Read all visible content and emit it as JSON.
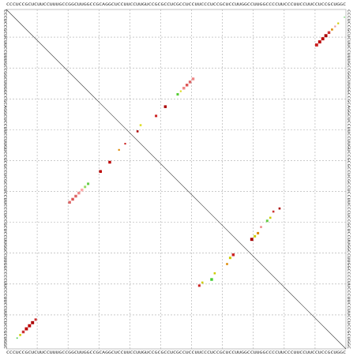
{
  "chart_data": {
    "type": "dotplot",
    "sequence": "CCCUCCGCUCUUCCUUUGCCGGCUUGGCCGCAGGCUCCUUCCUUGUCCGCGCCUCGCCUCCUUCCCUCCGCUCCUUGGCCUUGGCCCCUUCCCUUCCUUCCUCCGCUGGC",
    "gridlines": [
      10,
      20,
      30,
      40,
      50,
      60,
      70,
      80,
      90,
      100
    ],
    "grid": true,
    "dots": [
      {
        "row": 106,
        "col": 3,
        "size": 0.4,
        "color": "#44cc44"
      },
      {
        "row": 105,
        "col": 4,
        "size": 0.6,
        "color": "#cccc00"
      },
      {
        "row": 104,
        "col": 5,
        "size": 0.8,
        "color": "#cc3333"
      },
      {
        "row": 103,
        "col": 6,
        "size": 0.9,
        "color": "#bb0000"
      },
      {
        "row": 102,
        "col": 7,
        "size": 0.9,
        "color": "#bb0000"
      },
      {
        "row": 101,
        "col": 8,
        "size": 0.9,
        "color": "#aa0000"
      },
      {
        "row": 100,
        "col": 9,
        "size": 0.7,
        "color": "#cc3333"
      },
      {
        "row": 62,
        "col": 20,
        "size": 0.8,
        "color": "#dd6666"
      },
      {
        "row": 61,
        "col": 21,
        "size": 0.8,
        "color": "#dd5555"
      },
      {
        "row": 60,
        "col": 22,
        "size": 0.8,
        "color": "#dd6666"
      },
      {
        "row": 59,
        "col": 23,
        "size": 0.8,
        "color": "#ee8888"
      },
      {
        "row": 58,
        "col": 24,
        "size": 0.8,
        "color": "#ffaaaa"
      },
      {
        "row": 57,
        "col": 25,
        "size": 0.7,
        "color": "#99dd66"
      },
      {
        "row": 56,
        "col": 26,
        "size": 0.7,
        "color": "#66cc44"
      },
      {
        "row": 52,
        "col": 30,
        "size": 0.8,
        "color": "#bb0000"
      },
      {
        "row": 49,
        "col": 33,
        "size": 0.8,
        "color": "#bb0000"
      },
      {
        "row": 45,
        "col": 36,
        "size": 0.5,
        "color": "#dd8800"
      },
      {
        "row": 43,
        "col": 38,
        "size": 0.5,
        "color": "#cc2222"
      },
      {
        "row": 39,
        "col": 42,
        "size": 0.6,
        "color": "#aa0000"
      },
      {
        "row": 37,
        "col": 43,
        "size": 0.6,
        "color": "#dddd22"
      },
      {
        "row": 34,
        "col": 48,
        "size": 0.7,
        "color": "#cc2222"
      },
      {
        "row": 31,
        "col": 51,
        "size": 0.8,
        "color": "#aa0000"
      },
      {
        "row": 27,
        "col": 55,
        "size": 0.7,
        "color": "#55cc33"
      },
      {
        "row": 26,
        "col": 56,
        "size": 0.5,
        "color": "#dddd22"
      },
      {
        "row": 25,
        "col": 57,
        "size": 0.8,
        "color": "#ee8888"
      },
      {
        "row": 24,
        "col": 58,
        "size": 0.8,
        "color": "#dd5555"
      },
      {
        "row": 23,
        "col": 59,
        "size": 0.8,
        "color": "#dd6666"
      },
      {
        "row": 22,
        "col": 60,
        "size": 0.8,
        "color": "#ee8888"
      },
      {
        "row": 11,
        "col": 100,
        "size": 0.9,
        "color": "#cc2222"
      },
      {
        "row": 10,
        "col": 101,
        "size": 0.9,
        "color": "#bb0000"
      },
      {
        "row": 9,
        "col": 102,
        "size": 0.9,
        "color": "#bb0000"
      },
      {
        "row": 8,
        "col": 103,
        "size": 0.9,
        "color": "#aa0000"
      },
      {
        "row": 7,
        "col": 104,
        "size": 0.8,
        "color": "#cc3333"
      },
      {
        "row": 6,
        "col": 105,
        "size": 0.6,
        "color": "#dd8800"
      },
      {
        "row": 5,
        "col": 106,
        "size": 0.5,
        "color": "#ee9999"
      },
      {
        "row": 4,
        "col": 107,
        "size": 0.5,
        "color": "#cccc00"
      },
      {
        "row": 2,
        "col": 109,
        "size": 0.3,
        "color": "#44cc44"
      },
      {
        "row": 89,
        "col": 62,
        "size": 0.7,
        "color": "#cc2222"
      },
      {
        "row": 88,
        "col": 63,
        "size": 0.6,
        "color": "#cccc00"
      },
      {
        "row": 87,
        "col": 66,
        "size": 0.8,
        "color": "#44cc33"
      },
      {
        "row": 85,
        "col": 67,
        "size": 0.6,
        "color": "#cccc00"
      },
      {
        "row": 82,
        "col": 71,
        "size": 0.6,
        "color": "#dd8800"
      },
      {
        "row": 80,
        "col": 72,
        "size": 0.7,
        "color": "#cccc00"
      },
      {
        "row": 79,
        "col": 73,
        "size": 0.8,
        "color": "#cc2222"
      },
      {
        "row": 74,
        "col": 79,
        "size": 0.9,
        "color": "#aa0000"
      },
      {
        "row": 73,
        "col": 80,
        "size": 0.7,
        "color": "#cccc00"
      },
      {
        "row": 72,
        "col": 81,
        "size": 0.7,
        "color": "#dd8800"
      },
      {
        "row": 70,
        "col": 82,
        "size": 0.6,
        "color": "#ee8888"
      },
      {
        "row": 68,
        "col": 84,
        "size": 0.7,
        "color": "#66cc44"
      },
      {
        "row": 67,
        "col": 85,
        "size": 0.6,
        "color": "#cccc00"
      },
      {
        "row": 65,
        "col": 86,
        "size": 0.6,
        "color": "#cc3333"
      },
      {
        "row": 64,
        "col": 88,
        "size": 0.6,
        "color": "#aa0000"
      }
    ]
  }
}
